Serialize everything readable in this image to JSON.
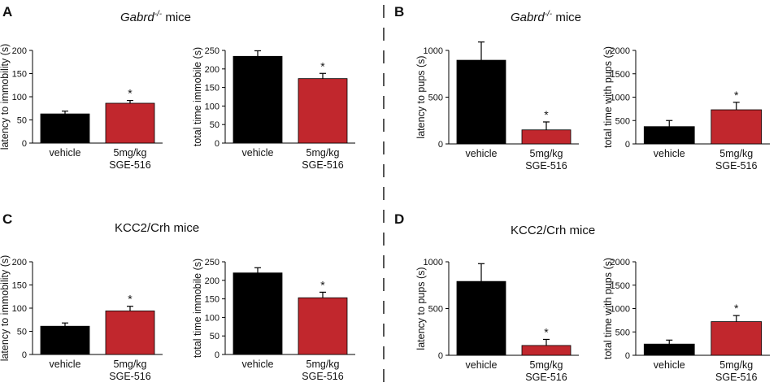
{
  "colors": {
    "vehicle": "#000000",
    "treatment": "#c1272d",
    "divider": "#555555"
  },
  "panels": [
    {
      "label": "A",
      "title": {
        "gene": "Gabrd",
        "sup": "-/-",
        "suffix": " mice"
      },
      "charts": [
        {
          "type": "bar",
          "ylabel": "latency to immobility (s)",
          "ylim": [
            0,
            200
          ],
          "yticks": [
            "0",
            "50",
            "100",
            "150",
            "200"
          ],
          "categories": [
            "vehicle",
            "5mg/kg\nSGE-516"
          ],
          "values": [
            63,
            86
          ],
          "errors": [
            6,
            6
          ],
          "significance": [
            "",
            "*"
          ]
        },
        {
          "type": "bar",
          "ylabel": "total time immobile (s)",
          "ylim": [
            0,
            250
          ],
          "yticks": [
            "0",
            "50",
            "100",
            "150",
            "200",
            "250"
          ],
          "categories": [
            "vehicle",
            "5mg/kg\nSGE-516"
          ],
          "values": [
            234,
            174
          ],
          "errors": [
            15,
            14
          ],
          "significance": [
            "",
            "*"
          ]
        }
      ]
    },
    {
      "label": "B",
      "title": {
        "gene": "Gabrd",
        "sup": "-/-",
        "suffix": " mice"
      },
      "charts": [
        {
          "type": "bar",
          "ylabel": "latency to pups (s)",
          "ylim": [
            0,
            1000
          ],
          "yticks": [
            "0",
            "500",
            "1000"
          ],
          "categories": [
            "vehicle",
            "5mg/kg\nSGE-516"
          ],
          "values": [
            895,
            150
          ],
          "errors": [
            195,
            85
          ],
          "significance": [
            "",
            "*"
          ]
        },
        {
          "type": "bar",
          "ylabel": "total time with pups (s)",
          "ylim": [
            0,
            2000
          ],
          "yticks": [
            "0",
            "500",
            "1000",
            "1500",
            "2000"
          ],
          "categories": [
            "vehicle",
            "5mg/kg\nSGE-516"
          ],
          "values": [
            370,
            730
          ],
          "errors": [
            130,
            160
          ],
          "significance": [
            "",
            "*"
          ]
        }
      ]
    },
    {
      "label": "C",
      "title": {
        "gene": "KCC2/Crh mice",
        "sup": "",
        "suffix": ""
      },
      "charts": [
        {
          "type": "bar",
          "ylabel": "latency to immobility (s)",
          "ylim": [
            0,
            200
          ],
          "yticks": [
            "0",
            "50",
            "100",
            "150",
            "200"
          ],
          "categories": [
            "vehicle",
            "5mg/kg\nSGE-516"
          ],
          "values": [
            61,
            94
          ],
          "errors": [
            7,
            10
          ],
          "significance": [
            "",
            "*"
          ]
        },
        {
          "type": "bar",
          "ylabel": "total time immobile (s)",
          "ylim": [
            0,
            250
          ],
          "yticks": [
            "0",
            "50",
            "100",
            "150",
            "200",
            "250"
          ],
          "categories": [
            "vehicle",
            "5mg/kg\nSGE-516"
          ],
          "values": [
            220,
            153
          ],
          "errors": [
            14,
            15
          ],
          "significance": [
            "",
            "*"
          ]
        }
      ]
    },
    {
      "label": "D",
      "title": {
        "gene": "KCC2/Crh mice",
        "sup": "",
        "suffix": ""
      },
      "charts": [
        {
          "type": "bar",
          "ylabel": "latency to pups (s)",
          "ylim": [
            0,
            1000
          ],
          "yticks": [
            "0",
            "500",
            "1000"
          ],
          "categories": [
            "vehicle",
            "5mg/kg\nSGE-516"
          ],
          "values": [
            790,
            105
          ],
          "errors": [
            190,
            65
          ],
          "significance": [
            "",
            "*"
          ]
        },
        {
          "type": "bar",
          "ylabel": "total time with pups (s)",
          "ylim": [
            0,
            2000
          ],
          "yticks": [
            "0",
            "500",
            "1000",
            "1500",
            "2000"
          ],
          "categories": [
            "vehicle",
            "5mg/kg\nSGE-516"
          ],
          "values": [
            240,
            720
          ],
          "errors": [
            85,
            130
          ],
          "significance": [
            "",
            "*"
          ]
        }
      ]
    }
  ],
  "chart_data": [
    {
      "type": "bar",
      "panel": "A",
      "title": "Gabrd-/- mice",
      "ylabel": "latency to immobility (s)",
      "categories": [
        "vehicle",
        "5mg/kg SGE-516"
      ],
      "values": [
        63,
        86
      ],
      "errors": [
        6,
        6
      ],
      "ylim": [
        0,
        200
      ]
    },
    {
      "type": "bar",
      "panel": "A",
      "title": "Gabrd-/- mice",
      "ylabel": "total time immobile (s)",
      "categories": [
        "vehicle",
        "5mg/kg SGE-516"
      ],
      "values": [
        234,
        174
      ],
      "errors": [
        15,
        14
      ],
      "ylim": [
        0,
        250
      ]
    },
    {
      "type": "bar",
      "panel": "B",
      "title": "Gabrd-/- mice",
      "ylabel": "latency to pups (s)",
      "categories": [
        "vehicle",
        "5mg/kg SGE-516"
      ],
      "values": [
        895,
        150
      ],
      "errors": [
        195,
        85
      ],
      "ylim": [
        0,
        1000
      ]
    },
    {
      "type": "bar",
      "panel": "B",
      "title": "Gabrd-/- mice",
      "ylabel": "total time with pups (s)",
      "categories": [
        "vehicle",
        "5mg/kg SGE-516"
      ],
      "values": [
        370,
        730
      ],
      "errors": [
        130,
        160
      ],
      "ylim": [
        0,
        2000
      ]
    },
    {
      "type": "bar",
      "panel": "C",
      "title": "KCC2/Crh mice",
      "ylabel": "latency to immobility (s)",
      "categories": [
        "vehicle",
        "5mg/kg SGE-516"
      ],
      "values": [
        61,
        94
      ],
      "errors": [
        7,
        10
      ],
      "ylim": [
        0,
        200
      ]
    },
    {
      "type": "bar",
      "panel": "C",
      "title": "KCC2/Crh mice",
      "ylabel": "total time immobile (s)",
      "categories": [
        "vehicle",
        "5mg/kg SGE-516"
      ],
      "values": [
        220,
        153
      ],
      "errors": [
        14,
        15
      ],
      "ylim": [
        0,
        250
      ]
    },
    {
      "type": "bar",
      "panel": "D",
      "title": "KCC2/Crh mice",
      "ylabel": "latency to pups (s)",
      "categories": [
        "vehicle",
        "5mg/kg SGE-516"
      ],
      "values": [
        790,
        105
      ],
      "errors": [
        190,
        65
      ],
      "ylim": [
        0,
        1000
      ]
    },
    {
      "type": "bar",
      "panel": "D",
      "title": "KCC2/Crh mice",
      "ylabel": "total time with pups (s)",
      "categories": [
        "vehicle",
        "5mg/kg SGE-516"
      ],
      "values": [
        240,
        720
      ],
      "errors": [
        85,
        130
      ],
      "ylim": [
        0,
        2000
      ]
    }
  ]
}
